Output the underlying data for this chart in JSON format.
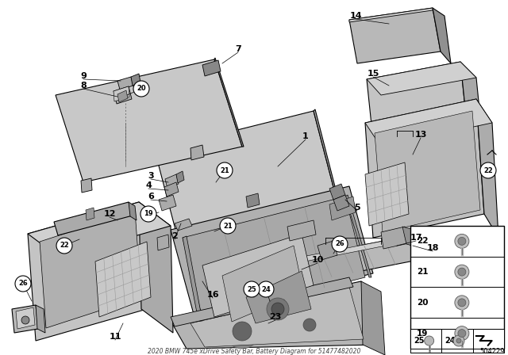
{
  "title": "2020 BMW 745e xDrive Safety Bar, Battery Diagram for 51477482020",
  "bg_color": "#ffffff",
  "part_number": "504229",
  "gray_light": "#c8c8c8",
  "gray_mid": "#aaaaaa",
  "gray_dark": "#888888",
  "gray_face": "#b8b8b8",
  "line_color": "#000000",
  "white": "#ffffff"
}
